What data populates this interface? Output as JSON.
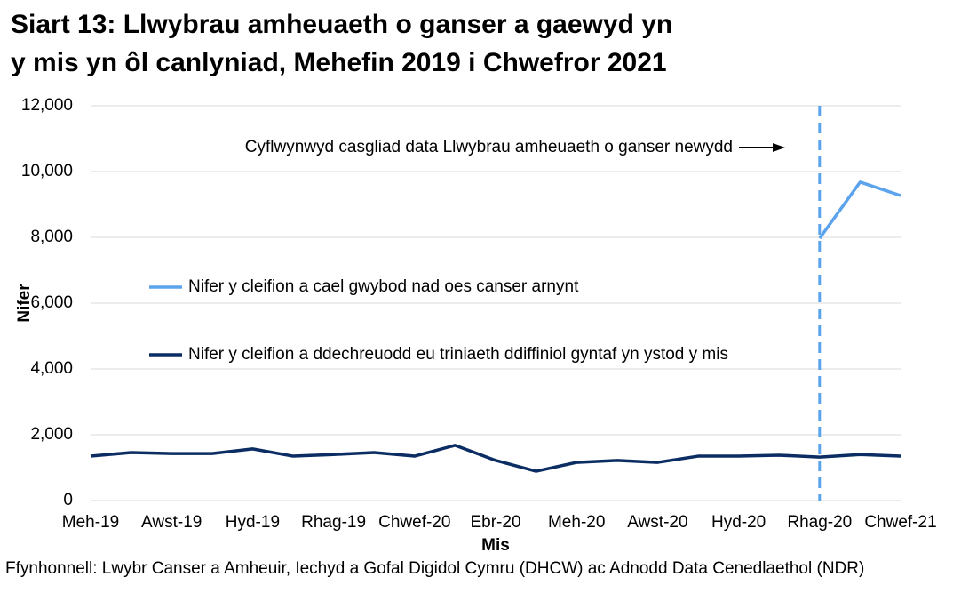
{
  "chart_data": {
    "type": "line",
    "title": [
      "Siart 13: Llwybrau amheuaeth o ganser a gaewyd yn",
      "y mis yn ôl canlyniad, Mehefin 2019 i Chwefror 2021"
    ],
    "x_label": "Mis",
    "y_label": "Nifer",
    "source": "Ffynhonnell: Lwybr Canser a Amheuir, Iechyd a Gofal Digidol Cymru (DHCW) ac Adnodd Data Cenedlaethol (NDR)",
    "categories": [
      "Meh-19",
      null,
      "Awst-19",
      null,
      "Hyd-19",
      null,
      "Rhag-19",
      null,
      "Chwef-20",
      null,
      "Ebr-20",
      null,
      "Meh-20",
      null,
      "Awst-20",
      null,
      "Hyd-20",
      null,
      "Rhag-20",
      null,
      "Chwef-21"
    ],
    "series": [
      {
        "name": "Nifer y cleifion a cael gwybod nad oes canser arnynt",
        "color": "#5ba3ec",
        "values": [
          null,
          null,
          null,
          null,
          null,
          null,
          null,
          null,
          null,
          null,
          null,
          null,
          null,
          null,
          null,
          null,
          null,
          null,
          7970,
          9680,
          9270
        ]
      },
      {
        "name": "Nifer y cleifion a ddechreuodd eu triniaeth ddiffiniol gyntaf yn ystod y mis",
        "color": "#0b2d63",
        "values": [
          1350,
          1460,
          1430,
          1430,
          1570,
          1350,
          1400,
          1460,
          1350,
          1680,
          1220,
          890,
          1160,
          1220,
          1160,
          1350,
          1350,
          1380,
          1320,
          1400,
          1350
        ]
      }
    ],
    "ylim": [
      0,
      12000
    ],
    "yticks": [
      {
        "value": 0,
        "label": "0"
      },
      {
        "value": 2000,
        "label": "2,000"
      },
      {
        "value": 4000,
        "label": "4,000"
      },
      {
        "value": 6000,
        "label": "6,000"
      },
      {
        "value": 8000,
        "label": "8,000"
      },
      {
        "value": 10000,
        "label": "10,000"
      },
      {
        "value": 12000,
        "label": "12,000"
      }
    ],
    "grid": true,
    "annotation": {
      "text": "Cyflwynwyd casgliad data Llwybrau amheuaeth o ganser newydd",
      "category": "Rhag-20",
      "color": "#5ba3ec"
    }
  }
}
